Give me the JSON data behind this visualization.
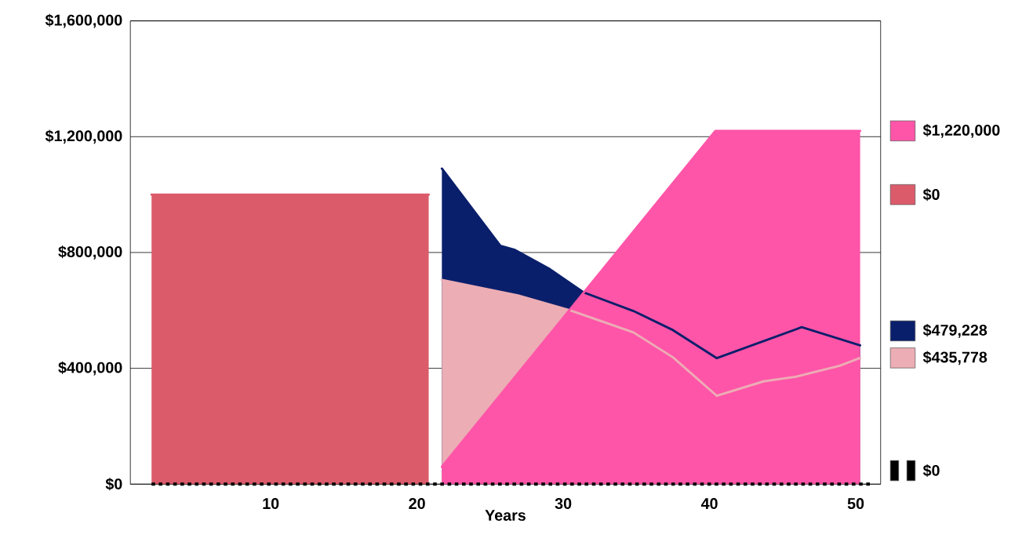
{
  "chart_data": {
    "type": "area",
    "xlabel": "Years",
    "xlim": [
      0.4,
      51.7
    ],
    "xticks": [
      10,
      20,
      30,
      40,
      50
    ],
    "ylim": [
      0,
      1600000
    ],
    "yticks": [
      {
        "value": 0,
        "label": "$0"
      },
      {
        "value": 400000,
        "label": "$400,000"
      },
      {
        "value": 800000,
        "label": "$800,000"
      },
      {
        "value": 1200000,
        "label": "$1,200,000"
      },
      {
        "value": 1600000,
        "label": "$1,600,000"
      }
    ],
    "grid": "y",
    "legend": "right",
    "series": [
      {
        "name": "$0",
        "color": "#db5b6b",
        "x": [
          1.85,
          20.8
        ],
        "values": [
          1000000,
          1000000
        ]
      },
      {
        "name": "$479,228",
        "color": "#0a1f6b",
        "x": [
          21.7,
          25.7,
          26.7,
          29.0,
          31.4,
          34.8,
          37.5,
          40.5,
          46.3,
          50.3
        ],
        "values": [
          1090000,
          823000,
          809000,
          745000,
          662000,
          598000,
          532000,
          435000,
          542000,
          479228
        ]
      },
      {
        "name": "$435,778",
        "color": "#ecadb5",
        "x": [
          21.7,
          26.9,
          30.5,
          34.8,
          37.5,
          40.5,
          43.7,
          45.9,
          48.9,
          50.3
        ],
        "values": [
          705000,
          652000,
          600000,
          524000,
          438000,
          305000,
          355000,
          371000,
          409000,
          435778
        ]
      },
      {
        "name": "$1,220,000",
        "color": "#ff55a8",
        "x": [
          21.7,
          40.4,
          50.3
        ],
        "values": [
          60000,
          1220000,
          1220000
        ]
      },
      {
        "name": "$0",
        "type": "line",
        "line_style": "dotted",
        "color": "#000000",
        "x": [
          1.85,
          51.0
        ],
        "values": [
          0,
          0
        ]
      }
    ]
  }
}
